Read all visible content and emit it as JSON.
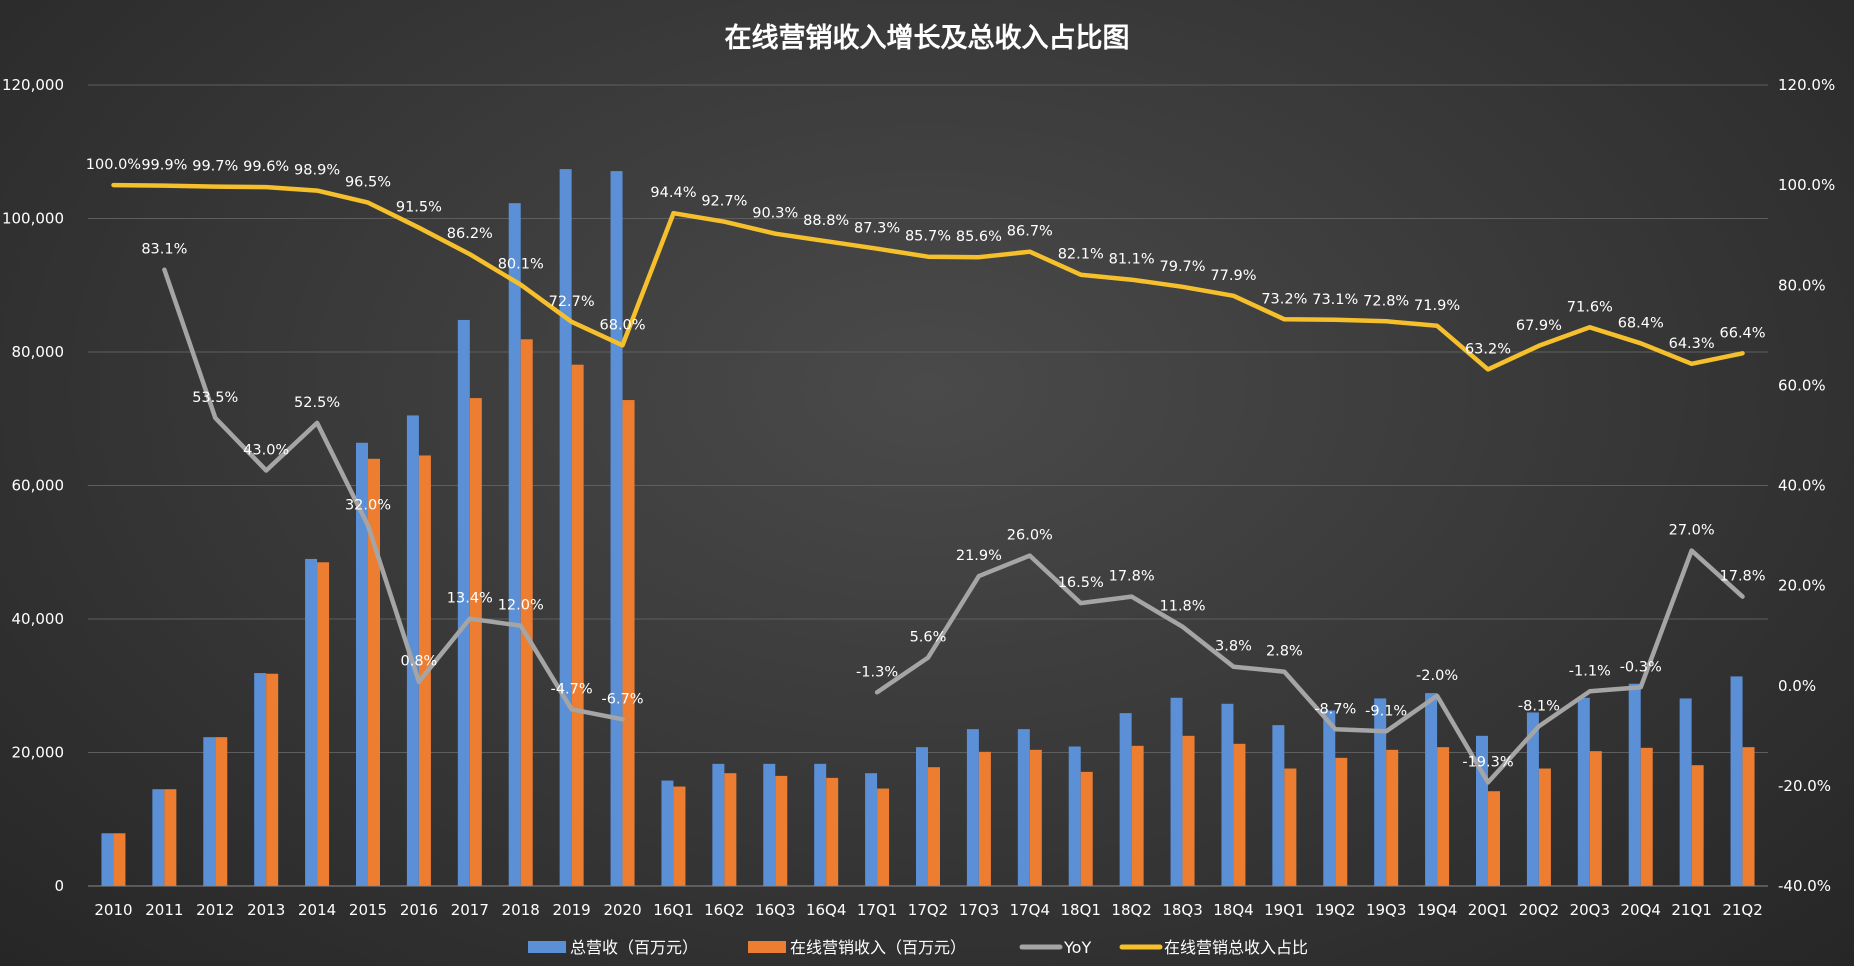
{
  "chart_data": {
    "type": "bar+line",
    "title": "在线营销收入增长及总收入占比图",
    "categories": [
      "2010",
      "2011",
      "2012",
      "2013",
      "2014",
      "2015",
      "2016",
      "2017",
      "2018",
      "2019",
      "2020",
      "16Q1",
      "16Q2",
      "16Q3",
      "16Q4",
      "17Q1",
      "17Q2",
      "17Q3",
      "17Q4",
      "18Q1",
      "18Q2",
      "18Q3",
      "18Q4",
      "19Q1",
      "19Q2",
      "19Q3",
      "19Q4",
      "20Q1",
      "20Q2",
      "20Q3",
      "20Q4",
      "21Q1",
      "21Q2"
    ],
    "y_left": {
      "ylim": [
        0,
        120000
      ],
      "ticks": [
        "0",
        "20,000",
        "40,000",
        "60,000",
        "80,000",
        "100,000",
        "120,000"
      ]
    },
    "y_right": {
      "ylim": [
        -40,
        120
      ],
      "ticks": [
        "-40.0%",
        "-20.0%",
        "0.0%",
        "20.0%",
        "40.0%",
        "60.0%",
        "80.0%",
        "100.0%",
        "120.0%"
      ]
    },
    "series": [
      {
        "name": "总营收（百万元）",
        "kind": "bar",
        "axis": "left",
        "color": "#5b8fd6",
        "values": [
          7900,
          14500,
          22300,
          31900,
          49000,
          66400,
          70500,
          84800,
          102300,
          107400,
          107100,
          15800,
          18300,
          18300,
          18300,
          16900,
          20800,
          23500,
          23500,
          20900,
          25900,
          28200,
          27300,
          24100,
          26300,
          28100,
          28900,
          22500,
          26000,
          28200,
          30300,
          28100,
          31400
        ]
      },
      {
        "name": "在线营销收入（百万元）",
        "kind": "bar",
        "axis": "left",
        "color": "#ed7d31",
        "values": [
          7900,
          14500,
          22300,
          31800,
          48500,
          64000,
          64500,
          73100,
          81900,
          78100,
          72800,
          14900,
          16900,
          16500,
          16200,
          14600,
          17800,
          20100,
          20400,
          17100,
          21000,
          22500,
          21300,
          17600,
          19200,
          20400,
          20800,
          14200,
          17600,
          20200,
          20700,
          18100,
          20800
        ]
      },
      {
        "name": "YoY",
        "kind": "line",
        "axis": "right",
        "color": "#a5a5a5",
        "values": [
          null,
          83.1,
          53.5,
          43.0,
          52.5,
          32.0,
          0.8,
          13.4,
          12.0,
          -4.7,
          -6.7,
          null,
          null,
          null,
          null,
          -1.3,
          5.6,
          21.9,
          26.0,
          16.5,
          17.8,
          11.8,
          3.8,
          2.8,
          -8.7,
          -9.1,
          -2.0,
          -19.3,
          -8.1,
          -1.1,
          -0.3,
          27.0,
          17.8
        ],
        "labels": [
          "",
          "83.1%",
          "53.5%",
          "43.0%",
          "52.5%",
          "32.0%",
          "0.8%",
          "13.4%",
          "12.0%",
          "-4.7%",
          "-6.7%",
          "",
          "",
          "",
          "",
          "-1.3%",
          "5.6%",
          "21.9%",
          "26.0%",
          "16.5%",
          "17.8%",
          "11.8%",
          "3.8%",
          "2.8%",
          "-8.7%",
          "-9.1%",
          "-2.0%",
          "-19.3%",
          "-8.1%",
          "-1.1%",
          "-0.3%",
          "27.0%",
          "17.8%"
        ]
      },
      {
        "name": "在线营销总收入占比",
        "kind": "line",
        "axis": "right",
        "color": "#f5c02c",
        "values": [
          100.0,
          99.9,
          99.7,
          99.6,
          98.9,
          96.5,
          91.5,
          86.2,
          80.1,
          72.7,
          68.0,
          94.4,
          92.7,
          90.3,
          88.8,
          87.3,
          85.7,
          85.6,
          86.7,
          82.1,
          81.1,
          79.7,
          77.9,
          73.2,
          73.1,
          72.8,
          71.9,
          63.2,
          67.9,
          71.6,
          68.4,
          64.3,
          66.4
        ],
        "labels": [
          "100.0%",
          "99.9%",
          "99.7%",
          "99.6%",
          "98.9%",
          "96.5%",
          "91.5%",
          "86.2%",
          "80.1%",
          "72.7%",
          "68.0%",
          "94.4%",
          "92.7%",
          "90.3%",
          "88.8%",
          "87.3%",
          "85.7%",
          "85.6%",
          "86.7%",
          "82.1%",
          "81.1%",
          "79.7%",
          "77.9%",
          "73.2%",
          "73.1%",
          "72.8%",
          "71.9%",
          "63.2%",
          "67.9%",
          "71.6%",
          "68.4%",
          "64.3%",
          "66.4%"
        ]
      }
    ],
    "grid": true,
    "legend": "bottom"
  }
}
